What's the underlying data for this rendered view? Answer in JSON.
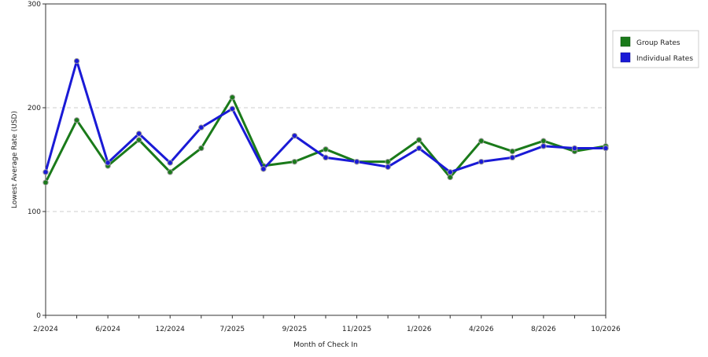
{
  "chart_data": {
    "type": "line",
    "title": "",
    "xlabel": "Month of Check In",
    "ylabel": "Lowest Average Rate (USD)",
    "ylim": [
      0,
      300
    ],
    "yticks": [
      0,
      100,
      200,
      300
    ],
    "grid": "horizontal-dashed",
    "legend_position": "right",
    "x_tick_labels": [
      "2/2024",
      "6/2024",
      "12/2024",
      "7/2025",
      "9/2025",
      "11/2025",
      "1/2026",
      "4/2026",
      "8/2026",
      "10/2026"
    ],
    "series": [
      {
        "name": "Group Rates",
        "color": "#1a7a1a",
        "values": [
          128,
          188,
          144,
          169,
          138,
          161,
          210,
          144,
          148,
          160,
          148,
          148,
          169,
          133,
          168,
          158,
          168,
          158,
          163
        ]
      },
      {
        "name": "Individual Rates",
        "color": "#1a1ad6",
        "values": [
          138,
          245,
          147,
          175,
          147,
          181,
          199,
          141,
          173,
          152,
          148,
          143,
          161,
          138,
          148,
          152,
          163,
          161,
          161
        ]
      }
    ]
  }
}
